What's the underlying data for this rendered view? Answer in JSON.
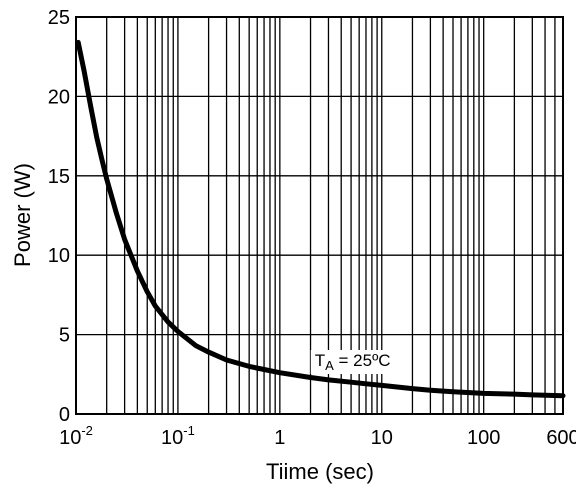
{
  "chart_data": {
    "type": "line",
    "title": "",
    "xlabel": "Tiime (sec)",
    "ylabel": "Power (W)",
    "xscale": "log",
    "xlim": [
      0.01,
      600
    ],
    "ylim": [
      0,
      25
    ],
    "grid": true,
    "x_ticks": [
      {
        "value": 0.01,
        "base": "10",
        "exp": "-2"
      },
      {
        "value": 0.1,
        "base": "10",
        "exp": "-1"
      },
      {
        "value": 1,
        "base": "1",
        "exp": ""
      },
      {
        "value": 10,
        "base": "10",
        "exp": ""
      },
      {
        "value": 100,
        "base": "100",
        "exp": ""
      },
      {
        "value": 600,
        "base": "600",
        "exp": ""
      }
    ],
    "y_ticks": [
      "0",
      "5",
      "10",
      "15",
      "20",
      "25"
    ],
    "series": [
      {
        "color": "#000000",
        "x": [
          0.0105,
          0.012,
          0.014,
          0.016,
          0.018,
          0.02,
          0.025,
          0.03,
          0.04,
          0.05,
          0.06,
          0.08,
          0.1,
          0.15,
          0.2,
          0.3,
          0.5,
          0.7,
          1,
          2,
          3,
          5,
          7,
          10,
          20,
          30,
          50,
          100,
          200,
          300,
          600
        ],
        "y": [
          23.4,
          21.6,
          19.3,
          17.4,
          16.0,
          14.8,
          12.6,
          11.0,
          9.0,
          7.7,
          6.8,
          5.8,
          5.2,
          4.3,
          3.9,
          3.4,
          3.0,
          2.8,
          2.6,
          2.3,
          2.15,
          2.0,
          1.9,
          1.8,
          1.6,
          1.5,
          1.4,
          1.3,
          1.25,
          1.2,
          1.15
        ]
      }
    ],
    "annotation": {
      "prefix": "T",
      "subscript": "A",
      "text": " = 25ºC",
      "x": 2.2,
      "y": 3.4
    }
  }
}
